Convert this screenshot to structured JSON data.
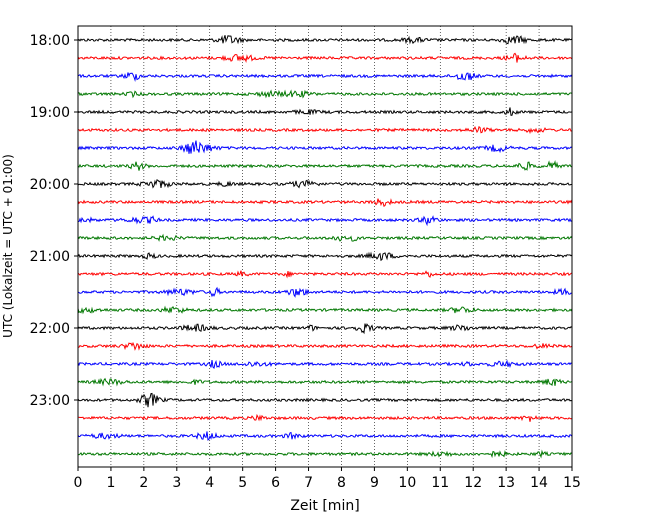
{
  "chart_data": {
    "type": "line",
    "subtype": "helicorder",
    "xlabel": "Zeit  [min]",
    "ylabel": "UTC (Lokalzeit = UTC + 01:00)",
    "xlim": [
      0,
      15
    ],
    "x_ticks": [
      "0",
      "1",
      "2",
      "3",
      "4",
      "5",
      "6",
      "7",
      "8",
      "9",
      "10",
      "11",
      "12",
      "13",
      "14",
      "15"
    ],
    "y_tick_labels": [
      "18:00",
      "19:00",
      "20:00",
      "21:00",
      "22:00",
      "23:00"
    ],
    "grid": "vertical dotted",
    "trace_interval_minutes": 15,
    "trace_colors": [
      "#000000",
      "#ff0000",
      "#0000ff",
      "#007700"
    ],
    "series": [
      {
        "start": "18:00"
      },
      {
        "start": "18:15"
      },
      {
        "start": "18:30"
      },
      {
        "start": "18:45"
      },
      {
        "start": "19:00"
      },
      {
        "start": "19:15"
      },
      {
        "start": "19:30"
      },
      {
        "start": "19:45"
      },
      {
        "start": "20:00"
      },
      {
        "start": "20:15"
      },
      {
        "start": "20:30"
      },
      {
        "start": "20:45"
      },
      {
        "start": "21:00"
      },
      {
        "start": "21:15"
      },
      {
        "start": "21:30"
      },
      {
        "start": "21:45"
      },
      {
        "start": "22:00"
      },
      {
        "start": "22:15"
      },
      {
        "start": "22:30"
      },
      {
        "start": "22:45"
      },
      {
        "start": "23:00"
      },
      {
        "start": "23:15"
      },
      {
        "start": "23:30"
      },
      {
        "start": "23:45"
      }
    ]
  }
}
